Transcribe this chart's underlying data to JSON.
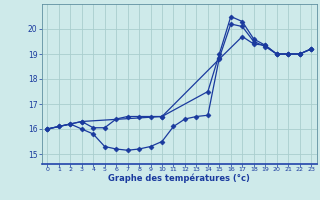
{
  "bg_color": "#ceeaea",
  "line_color": "#1a3a9e",
  "grid_color": "#aacece",
  "xlabel": "Graphe des températures (°c)",
  "xlim": [
    -0.5,
    23.5
  ],
  "ylim": [
    14.6,
    21.0
  ],
  "yticks": [
    15,
    16,
    17,
    18,
    19,
    20
  ],
  "xticks": [
    0,
    1,
    2,
    3,
    4,
    5,
    6,
    7,
    8,
    9,
    10,
    11,
    12,
    13,
    14,
    15,
    16,
    17,
    18,
    19,
    20,
    21,
    22,
    23
  ],
  "curve1_x": [
    0,
    1,
    2,
    3,
    4,
    5,
    6,
    7,
    8,
    9,
    10,
    14,
    15,
    16,
    17,
    18,
    19,
    20,
    21,
    22,
    23
  ],
  "curve1_y": [
    16.0,
    16.1,
    16.2,
    16.3,
    16.05,
    16.05,
    16.4,
    16.5,
    16.5,
    16.5,
    16.5,
    17.5,
    19.0,
    20.5,
    20.3,
    19.6,
    19.35,
    19.0,
    19.0,
    19.0,
    19.2
  ],
  "curve2_x": [
    0,
    1,
    2,
    3,
    4,
    5,
    6,
    7,
    8,
    9,
    10,
    11,
    12,
    13,
    14,
    15,
    16,
    17,
    18,
    19,
    20,
    21,
    22,
    23
  ],
  "curve2_y": [
    16.0,
    16.1,
    16.2,
    16.0,
    15.8,
    15.3,
    15.2,
    15.15,
    15.2,
    15.3,
    15.5,
    16.1,
    16.4,
    16.5,
    16.55,
    18.85,
    20.2,
    20.1,
    19.5,
    19.3,
    19.0,
    19.0,
    19.0,
    19.2
  ],
  "curve3_x": [
    0,
    3,
    10,
    15,
    17,
    18,
    19,
    20,
    21,
    22,
    23
  ],
  "curve3_y": [
    16.0,
    16.3,
    16.5,
    18.8,
    19.7,
    19.4,
    19.35,
    19.0,
    19.0,
    19.0,
    19.2
  ]
}
